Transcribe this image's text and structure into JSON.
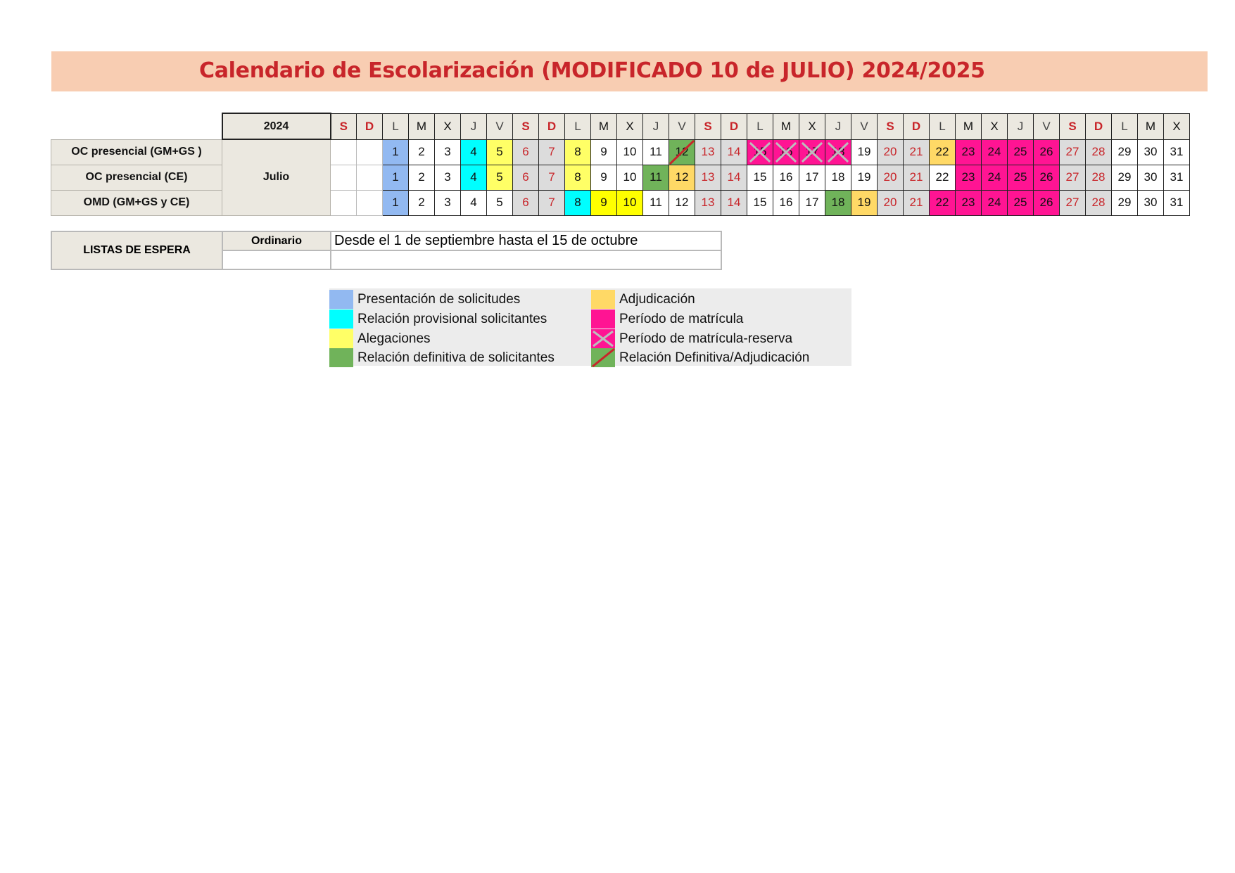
{
  "title": "Calendario de Escolarización (MODIFICADO 10 de JULIO) 2024/2025",
  "calendar": {
    "year": "2024",
    "month": "Julio",
    "day_headers": [
      "S",
      "D",
      "L",
      "M",
      "X",
      "J",
      "V",
      "S",
      "D",
      "L",
      "M",
      "X",
      "J",
      "V",
      "S",
      "D",
      "L",
      "M",
      "X",
      "J",
      "V",
      "S",
      "D",
      "L",
      "M",
      "X",
      "J",
      "V",
      "S",
      "D",
      "L",
      "M",
      "X"
    ],
    "rows": [
      {
        "label": "OC presencial  (GM+GS )",
        "days": [
          "",
          "",
          "1",
          "2",
          "3",
          "4",
          "5",
          "6",
          "7",
          "8",
          "9",
          "10",
          "11",
          "12",
          "13",
          "14",
          "15",
          "16",
          "17",
          "18",
          "19",
          "20",
          "21",
          "22",
          "23",
          "24",
          "25",
          "26",
          "27",
          "28",
          "29",
          "30",
          "31"
        ]
      },
      {
        "label": "OC presencial (CE)",
        "days": [
          "",
          "",
          "1",
          "2",
          "3",
          "4",
          "5",
          "6",
          "7",
          "8",
          "9",
          "10",
          "11",
          "12",
          "13",
          "14",
          "15",
          "16",
          "17",
          "18",
          "19",
          "20",
          "21",
          "22",
          "23",
          "24",
          "25",
          "26",
          "27",
          "28",
          "29",
          "30",
          "31"
        ]
      },
      {
        "label": "OMD (GM+GS y CE)",
        "days": [
          "",
          "",
          "1",
          "2",
          "3",
          "4",
          "5",
          "6",
          "7",
          "8",
          "9",
          "10",
          "11",
          "12",
          "13",
          "14",
          "15",
          "16",
          "17",
          "18",
          "19",
          "20",
          "21",
          "22",
          "23",
          "24",
          "25",
          "26",
          "27",
          "28",
          "29",
          "30",
          "31"
        ]
      }
    ]
  },
  "espera": {
    "label": "LISTAS DE ESPERA",
    "sub_label": "Ordinario",
    "text": "Desde el   1 de septiembre hasta el 15 de octubre"
  },
  "legend": {
    "items": [
      {
        "label": "Presentación de solicitudes",
        "color": "#92b9f1"
      },
      {
        "label": "Relación provisional solicitantes",
        "color": "#00ffff"
      },
      {
        "label": "Alegaciones",
        "color": "#ffff66"
      },
      {
        "label": "Relación definitiva de solicitantes",
        "color": "#70b35a"
      },
      {
        "label": "Adjudicación",
        "color": "#ffd966"
      },
      {
        "label": "Período de matrícula",
        "color": "#ff1493"
      },
      {
        "label": "Período de matrícula-reserva",
        "color": "#ff1493"
      },
      {
        "label": "Relación Definitiva/Adjudicación",
        "color": "#70b35a"
      }
    ]
  }
}
